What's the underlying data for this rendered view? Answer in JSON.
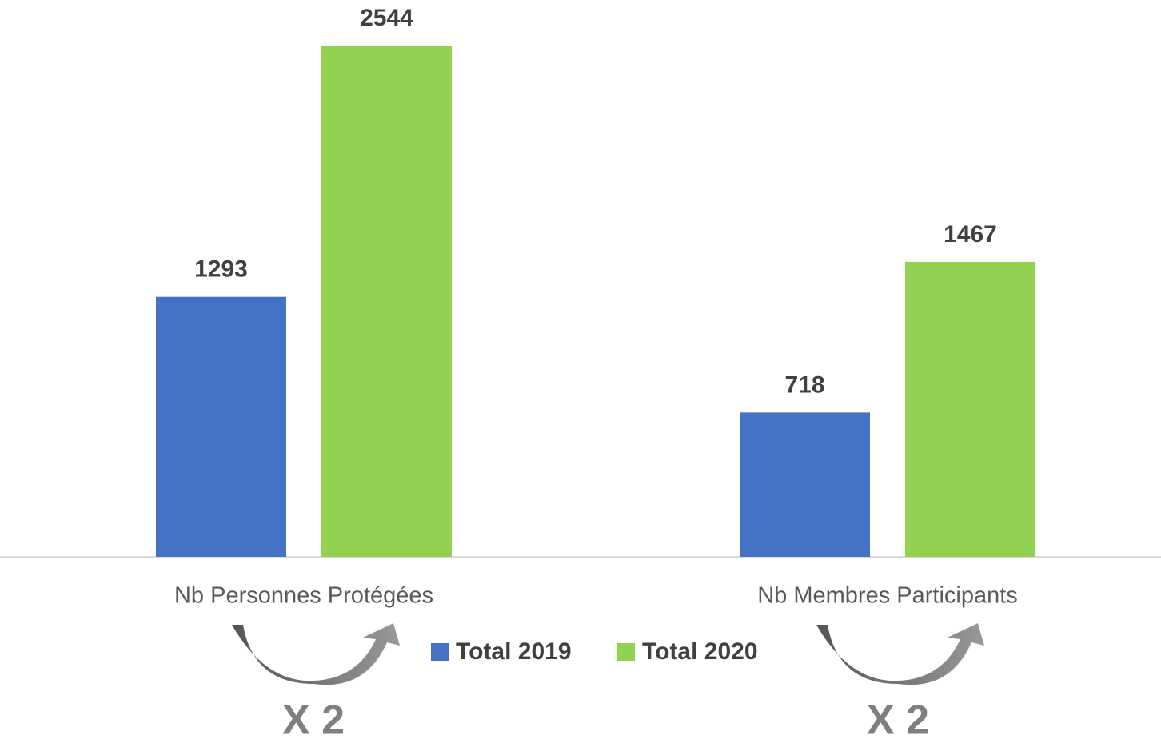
{
  "chart_data": {
    "type": "bar",
    "categories": [
      "Nb Personnes Protégées",
      "Nb Membres Participants"
    ],
    "series": [
      {
        "name": "Total 2019",
        "color": "#4472c4",
        "values": [
          1293,
          718
        ]
      },
      {
        "name": "Total 2020",
        "color": "#92d050",
        "values": [
          2544,
          1467
        ]
      }
    ],
    "annotations": [
      "X 2",
      "X 2"
    ],
    "legend": "bottom"
  }
}
